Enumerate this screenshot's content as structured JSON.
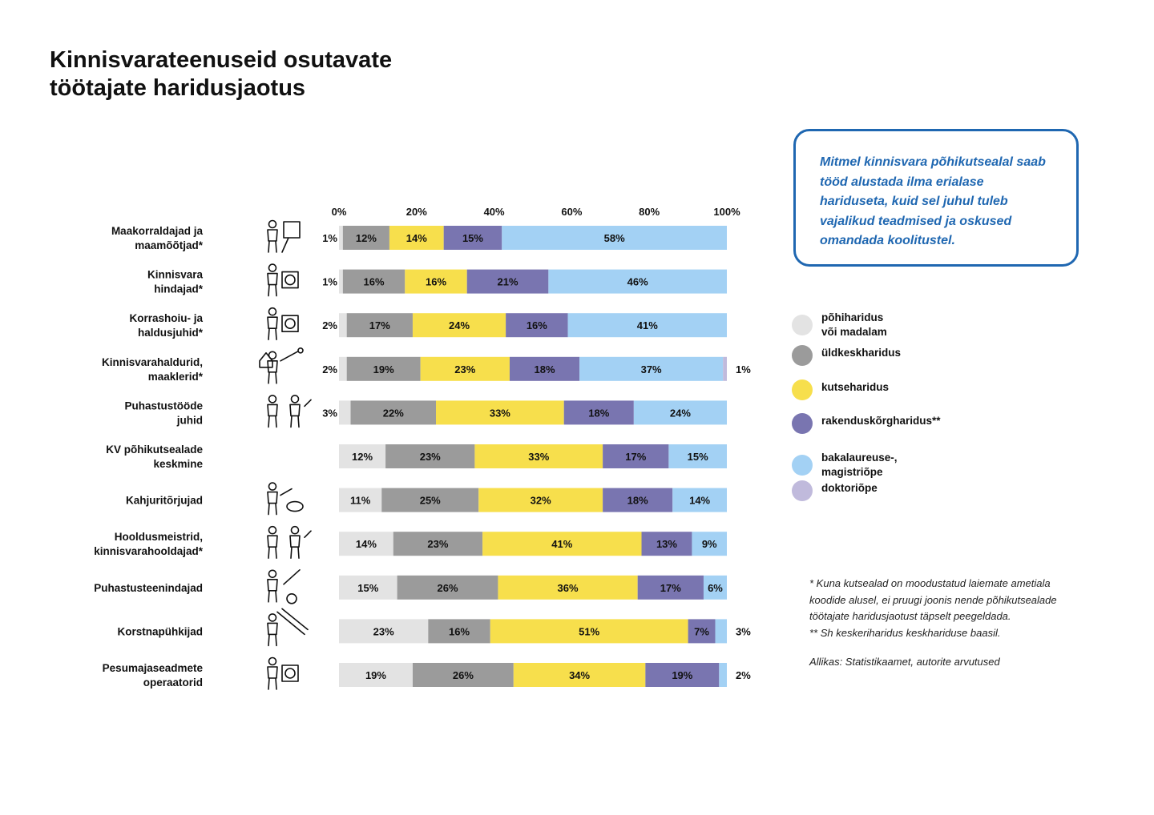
{
  "title_lines": [
    "Kinnisvarateenuseid osutavate",
    "töötajate haridusjaotus"
  ],
  "note": "Mitmel kinnisvara põhikutsealal saab tööd alustada ilma erialase hariduseta, kuid sel juhul tuleb vajalikud teadmised ja oskused omandada koolitustel.",
  "footnotes": [
    "* Kuna kutsealad on moodustatud laiemate ametiala koodide alusel, ei pruugi joonis nende põhikutsealade töötajate haridusjaotust täpselt peegeldada.",
    "** Sh keskeriharidus keskhariduse baasil."
  ],
  "source": "Allikas: Statistikaamet, autorite arvutused",
  "colors": {
    "pohiharidus": "#e3e3e3",
    "uldkesk": "#9b9b9b",
    "kutse": "#f7df4c",
    "rakendus": "#7975b0",
    "bakalaureus": "#a3d1f4",
    "doktor": "#c0badc",
    "note_blue": "#1f67b1"
  },
  "chart_data": {
    "type": "bar",
    "orientation": "horizontal",
    "stacked": true,
    "x_ticks": [
      "0%",
      "20%",
      "40%",
      "60%",
      "80%",
      "100%"
    ],
    "xlim": [
      0,
      100
    ],
    "categories": [
      [
        "Maakorraldajad ja",
        "maamõõtjad*"
      ],
      [
        "Kinnisvara",
        "hindajad*"
      ],
      [
        "Korrashoiu- ja",
        "haldusjuhid*"
      ],
      [
        "Kinnisvarahaldurid,",
        "maaklerid*"
      ],
      [
        "Puhastustööde",
        "juhid"
      ],
      [
        "KV põhikutsealade",
        "keskmine"
      ],
      [
        "Kahjuritõrjujad"
      ],
      [
        "Hooldusmeistrid,",
        "kinnisvarahooldajad*"
      ],
      [
        "Puhastusteenindajad"
      ],
      [
        "Korstnapühkijad"
      ],
      [
        "Pesumajaseadmete",
        "operaatorid"
      ]
    ],
    "icons": [
      "surveyor-icon",
      "appraiser-icon",
      "building-manager-icon",
      "property-agent-icon",
      "cleaning-supervisor-icon",
      "",
      "pest-control-icon",
      "maintenance-worker-icon",
      "cleaner-icon",
      "chimney-sweep-icon",
      "laundry-operator-icon"
    ],
    "series": [
      {
        "name": "põhiharidus või madalam",
        "color_key": "pohiharidus",
        "values": [
          1,
          1,
          2,
          2,
          3,
          12,
          11,
          14,
          15,
          23,
          19
        ],
        "labels": [
          "1%",
          "1%",
          "2%",
          "2%",
          "3%",
          "12%",
          "11%",
          "14%",
          "15%",
          "23%",
          "19%"
        ],
        "label_outside_left": [
          true,
          true,
          true,
          true,
          true,
          false,
          false,
          false,
          false,
          false,
          false
        ]
      },
      {
        "name": "üldkeskharidus",
        "color_key": "uldkesk",
        "values": [
          12,
          16,
          17,
          19,
          22,
          23,
          25,
          23,
          26,
          16,
          26
        ],
        "labels": [
          "12%",
          "16%",
          "17%",
          "19%",
          "22%",
          "23%",
          "25%",
          "23%",
          "26%",
          "16%",
          "26%"
        ]
      },
      {
        "name": "kutseharidus",
        "color_key": "kutse",
        "values": [
          14,
          16,
          24,
          23,
          33,
          33,
          32,
          41,
          36,
          51,
          34
        ],
        "labels": [
          "14%",
          "16%",
          "24%",
          "23%",
          "33%",
          "33%",
          "32%",
          "41%",
          "36%",
          "51%",
          "34%"
        ]
      },
      {
        "name": "rakenduskõrgharidus**",
        "color_key": "rakendus",
        "values": [
          15,
          21,
          16,
          18,
          18,
          17,
          18,
          13,
          17,
          7,
          19
        ],
        "labels": [
          "15%",
          "21%",
          "16%",
          "18%",
          "18%",
          "17%",
          "18%",
          "13%",
          "17%",
          "7%",
          "19%"
        ]
      },
      {
        "name": "bakalaureuse-, magistriõpe",
        "color_key": "bakalaureus",
        "values": [
          58,
          46,
          41,
          37,
          24,
          15,
          14,
          9,
          6,
          3,
          2
        ],
        "labels": [
          "58%",
          "46%",
          "41%",
          "37%",
          "24%",
          "15%",
          "14%",
          "9%",
          "6%",
          "3%",
          "2%"
        ],
        "label_outside_right": [
          false,
          false,
          false,
          false,
          false,
          false,
          false,
          false,
          false,
          true,
          true
        ]
      },
      {
        "name": "doktoriõpe",
        "color_key": "doktor",
        "values": [
          0,
          0,
          0,
          1,
          0,
          0,
          0,
          0,
          0,
          0,
          0
        ],
        "labels": [
          "",
          "",
          "",
          "1%",
          "",
          "",
          "",
          "",
          "",
          "",
          ""
        ],
        "label_outside_right": [
          false,
          false,
          false,
          true,
          false,
          false,
          false,
          false,
          false,
          false,
          false
        ]
      }
    ],
    "legend": [
      {
        "label_lines": [
          "põhiharidus",
          "või madalam"
        ],
        "color_key": "pohiharidus"
      },
      {
        "label_lines": [
          "üldkeskharidus"
        ],
        "color_key": "uldkesk"
      },
      {
        "label_lines": [
          "kutseharidus"
        ],
        "color_key": "kutse"
      },
      {
        "label_lines": [
          "rakenduskõrgharidus**"
        ],
        "color_key": "rakendus"
      },
      {
        "label_lines": [
          "bakalaureuse-,",
          "magistriõpe"
        ],
        "color_key": "bakalaureus"
      },
      {
        "label_lines": [
          "doktoriõpe"
        ],
        "color_key": "doktor"
      }
    ],
    "legend_position": "right",
    "grid": false
  }
}
